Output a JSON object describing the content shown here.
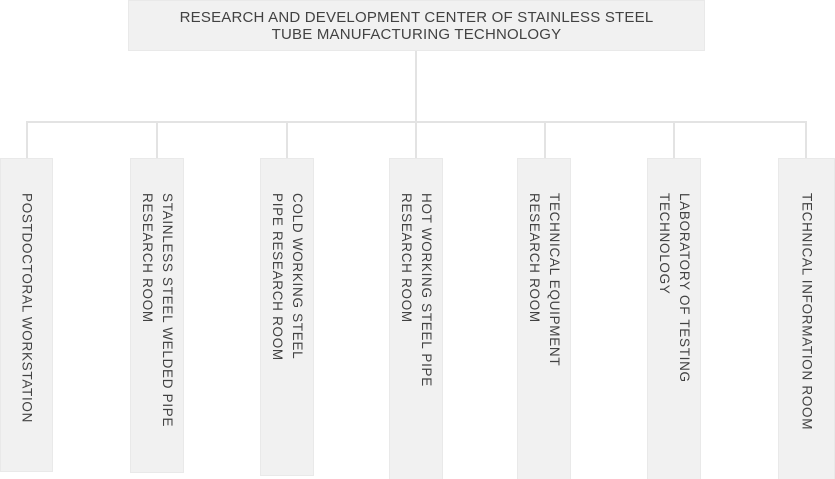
{
  "colors": {
    "box_fill": "#f1f1f1",
    "box_border": "#e9e9e9",
    "connector": "#e3e3e3",
    "text": "#424242",
    "background": "#ffffff"
  },
  "root": {
    "label": "RESEARCH AND DEVELOPMENT CENTER OF STAINLESS STEEL TUBE MANUFACTURING TECHNOLOGY",
    "lines": [
      "RESEARCH AND DEVELOPMENT CENTER OF STAINLESS STEEL",
      "TUBE MANUFACTURING TECHNOLOGY"
    ]
  },
  "departments": [
    {
      "label": "POSTDOCTORAL WORKSTATION",
      "lines": [
        "POSTDOCTORAL WORKSTATION"
      ]
    },
    {
      "label": "STAINLESS STEEL WELDED PIPE RESEARCH ROOM",
      "lines": [
        "STAINLESS STEEL WELDED PIPE",
        "RESEARCH ROOM"
      ]
    },
    {
      "label": "COLD WORKING STEEL PIPE RESEARCH ROOM",
      "lines": [
        "COLD WORKING STEEL",
        "PIPE RESEARCH ROOM"
      ]
    },
    {
      "label": "HOT WORKING STEEL PIPE RESEARCH ROOM",
      "lines": [
        "HOT WORKING STEEL PIPE",
        "RESEARCH ROOM"
      ]
    },
    {
      "label": "TECHNICAL EQUIPMENT RESEARCH ROOM",
      "lines": [
        "TECHNICAL EQUIPMENT",
        "RESEARCH ROOM"
      ]
    },
    {
      "label": "LABORATORY OF TESTING TECHNOLOGY",
      "lines": [
        "LABORATORY OF TESTING",
        "TECHNOLOGY"
      ]
    },
    {
      "label": "TECHNICAL INFORMATION ROOM",
      "lines": [
        "TECHNICAL INFORMATION ROOM"
      ]
    }
  ]
}
